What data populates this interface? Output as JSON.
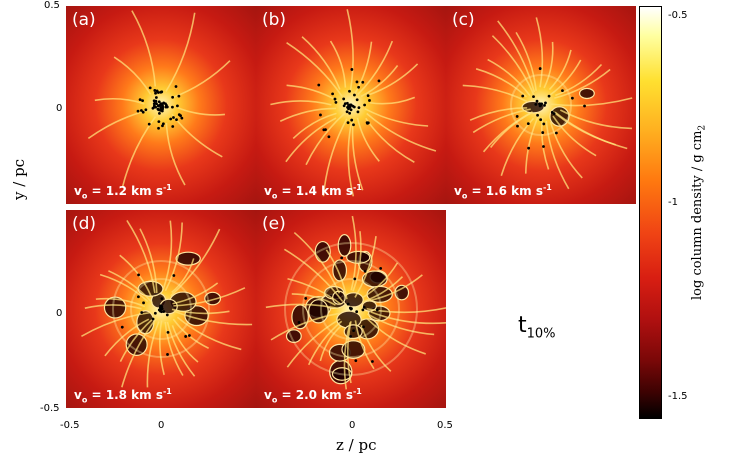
{
  "panels": [
    {
      "label": "(a)",
      "velocity": "v",
      "vsub": "o",
      "value": " = 1.2 km s",
      "exp": "-1"
    },
    {
      "label": "(b)",
      "velocity": "v",
      "vsub": "o",
      "value": " = 1.4 km s",
      "exp": "-1"
    },
    {
      "label": "(c)",
      "velocity": "v",
      "vsub": "o",
      "value": " = 1.6 km s",
      "exp": "-1"
    },
    {
      "label": "(d)",
      "velocity": "v",
      "vsub": "o",
      "value": " = 1.8 km s",
      "exp": "-1"
    },
    {
      "label": "(e)",
      "velocity": "v",
      "vsub": "o",
      "value": " = 2.0 km s",
      "exp": "-1"
    }
  ],
  "axes": {
    "ylabel": "y / pc",
    "xlabel": "z / pc",
    "yticks": [
      "0.5",
      "0",
      "-0.5"
    ],
    "xticks": [
      "-0.5",
      "0",
      "0.5"
    ],
    "row1_ytick": "0",
    "row2_ytick": "0",
    "xtick_mid": "0"
  },
  "colorbar": {
    "label": "log column density / g cm",
    "label_sub": "2",
    "ticks": [
      "-0.5",
      "-1",
      "-1.5"
    ]
  },
  "time": {
    "base": "t",
    "sub": "10%"
  },
  "colors": {
    "bright": "#fff6c2",
    "mid": "#ff7a1a",
    "dark": "#a51510",
    "void": "#1a0000"
  }
}
